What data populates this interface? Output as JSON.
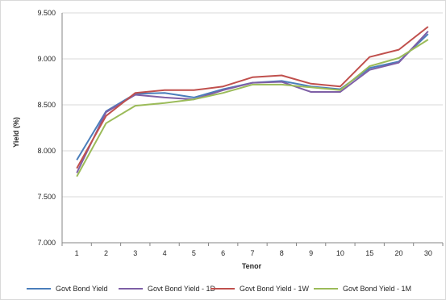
{
  "chart_data": {
    "type": "line",
    "title": "",
    "xlabel": "Tenor",
    "ylabel": "Yield (%)",
    "categories": [
      "1",
      "2",
      "3",
      "4",
      "5",
      "6",
      "7",
      "8",
      "9",
      "10",
      "15",
      "20",
      "30"
    ],
    "ylim": [
      7.0,
      9.5
    ],
    "yticks": [
      "7.000",
      "7.500",
      "8.000",
      "8.500",
      "9.000",
      "9.500"
    ],
    "grid": "horizontal",
    "legend_position": "bottom",
    "series": [
      {
        "name": "Govt Bond Yield",
        "color": "#4a7ebb",
        "values": [
          7.9,
          8.43,
          8.62,
          8.63,
          8.58,
          8.67,
          8.74,
          8.76,
          8.7,
          8.67,
          8.9,
          8.97,
          9.27
        ]
      },
      {
        "name": "Govt Bond Yield - 1D",
        "color": "#7e5fa6",
        "values": [
          7.76,
          8.42,
          8.61,
          8.58,
          8.56,
          8.66,
          8.74,
          8.75,
          8.64,
          8.64,
          8.88,
          8.96,
          9.3
        ]
      },
      {
        "name": "Govt Bond Yield - 1W",
        "color": "#c0504d",
        "values": [
          7.81,
          8.38,
          8.63,
          8.66,
          8.66,
          8.7,
          8.8,
          8.82,
          8.73,
          8.7,
          9.02,
          9.1,
          9.35
        ]
      },
      {
        "name": "Govt Bond Yield - 1M",
        "color": "#9bbb59",
        "values": [
          7.72,
          8.3,
          8.49,
          8.52,
          8.56,
          8.63,
          8.72,
          8.72,
          8.69,
          8.66,
          8.92,
          9.01,
          9.21
        ]
      }
    ]
  }
}
